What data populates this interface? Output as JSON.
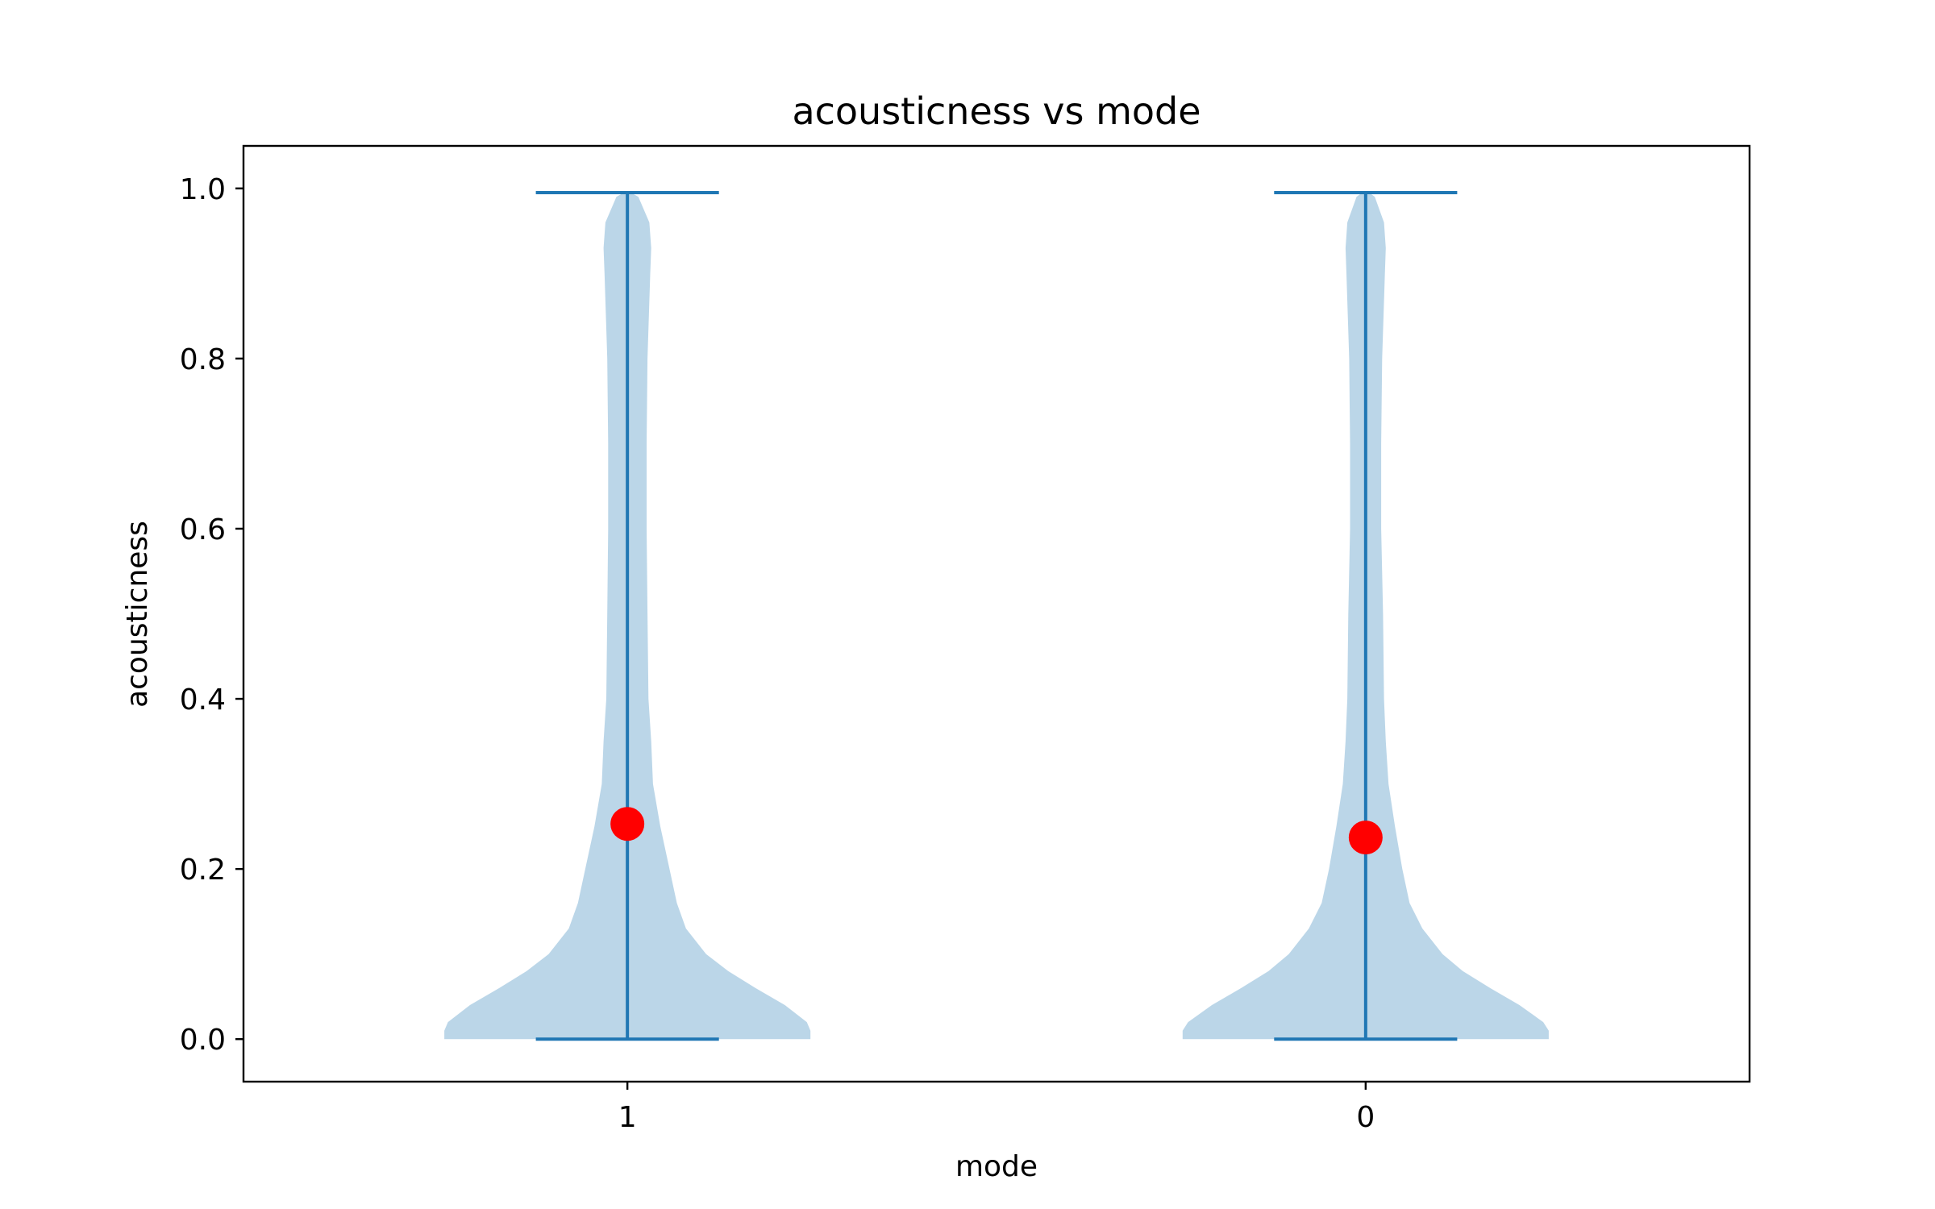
{
  "chart_data": {
    "type": "violin",
    "title": "acousticness vs mode",
    "xlabel": "mode",
    "ylabel": "acousticness",
    "categories": [
      "1",
      "0"
    ],
    "ylim": [
      -0.05,
      1.05
    ],
    "yticks": [
      0.0,
      0.2,
      0.4,
      0.6,
      0.8,
      1.0
    ],
    "ytick_labels": [
      "0.0",
      "0.2",
      "0.4",
      "0.6",
      "0.8",
      "1.0"
    ],
    "grid": false,
    "violins": [
      {
        "category": "1",
        "min": 0.0,
        "max": 0.995,
        "mean": 0.253,
        "density_profile": [
          [
            0.0,
            1.0
          ],
          [
            0.01,
            1.0
          ],
          [
            0.02,
            0.98
          ],
          [
            0.04,
            0.86
          ],
          [
            0.06,
            0.7
          ],
          [
            0.08,
            0.55
          ],
          [
            0.1,
            0.43
          ],
          [
            0.13,
            0.32
          ],
          [
            0.16,
            0.27
          ],
          [
            0.2,
            0.23
          ],
          [
            0.25,
            0.18
          ],
          [
            0.3,
            0.14
          ],
          [
            0.35,
            0.13
          ],
          [
            0.4,
            0.115
          ],
          [
            0.5,
            0.11
          ],
          [
            0.6,
            0.105
          ],
          [
            0.7,
            0.105
          ],
          [
            0.8,
            0.11
          ],
          [
            0.9,
            0.125
          ],
          [
            0.93,
            0.13
          ],
          [
            0.96,
            0.12
          ],
          [
            0.99,
            0.06
          ],
          [
            0.995,
            0.02
          ]
        ]
      },
      {
        "category": "0",
        "min": 0.0,
        "max": 0.995,
        "mean": 0.237,
        "density_profile": [
          [
            0.0,
            1.0
          ],
          [
            0.01,
            1.0
          ],
          [
            0.02,
            0.97
          ],
          [
            0.04,
            0.84
          ],
          [
            0.06,
            0.68
          ],
          [
            0.08,
            0.53
          ],
          [
            0.1,
            0.42
          ],
          [
            0.13,
            0.31
          ],
          [
            0.16,
            0.24
          ],
          [
            0.2,
            0.2
          ],
          [
            0.25,
            0.16
          ],
          [
            0.3,
            0.125
          ],
          [
            0.35,
            0.11
          ],
          [
            0.4,
            0.1
          ],
          [
            0.5,
            0.095
          ],
          [
            0.6,
            0.085
          ],
          [
            0.7,
            0.085
          ],
          [
            0.8,
            0.09
          ],
          [
            0.9,
            0.105
          ],
          [
            0.93,
            0.11
          ],
          [
            0.96,
            0.1
          ],
          [
            0.99,
            0.05
          ],
          [
            0.995,
            0.02
          ]
        ]
      }
    ],
    "colors": {
      "body": "#1f77b4",
      "body_alpha": 0.3,
      "lines": "#1f77b4",
      "mean_marker": "#ff0000",
      "frame": "#000000"
    }
  }
}
